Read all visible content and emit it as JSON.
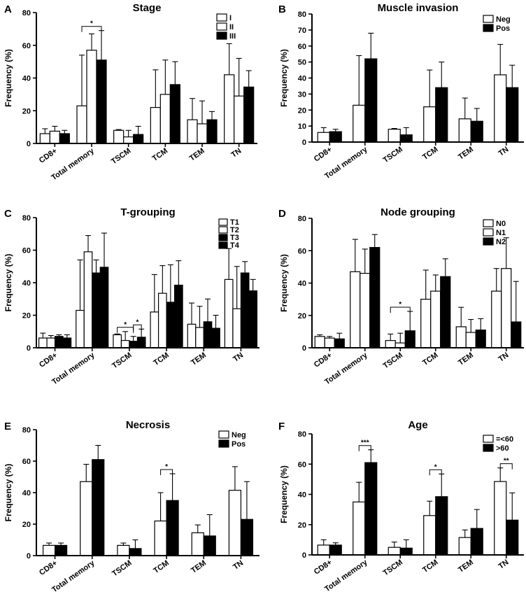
{
  "chart_data": [
    {
      "type": "bar",
      "panel_letter": "A",
      "title": "Stage",
      "ylabel": "Frequency (%)",
      "ylim": [
        0,
        80
      ],
      "yticks": [
        "0",
        "20",
        "40",
        "60",
        "80"
      ],
      "categories": [
        "CD8+",
        "Total memory",
        "TSCM",
        "TCM",
        "TEM",
        "TN"
      ],
      "series": [
        {
          "name": "I",
          "fill": "white",
          "values": [
            6,
            23,
            8,
            22,
            14.5,
            42
          ],
          "errors": [
            3,
            31,
            0.5,
            23,
            13,
            19
          ]
        },
        {
          "name": "II",
          "fill": "white",
          "values": [
            7.5,
            57,
            4,
            30,
            12,
            29
          ],
          "errors": [
            3,
            10,
            4,
            21,
            14,
            23
          ]
        },
        {
          "name": "III",
          "fill": "black",
          "values": [
            6,
            51,
            5.5,
            36,
            14.5,
            34.5
          ],
          "errors": [
            2,
            18,
            5,
            14,
            5,
            10
          ]
        }
      ],
      "legend_position": "top-right",
      "significance": [
        {
          "label": "*",
          "category": "Total memory",
          "from": 0,
          "to": 2
        }
      ]
    },
    {
      "type": "bar",
      "panel_letter": "B",
      "title": "Muscle invasion",
      "ylabel": "Frequency (%)",
      "ylim": [
        0,
        80
      ],
      "yticks": [
        "0",
        "10",
        "20",
        "30",
        "40",
        "50",
        "60",
        "70",
        "80"
      ],
      "categories": [
        "CD8+",
        "Total memory",
        "TSCM",
        "TCM",
        "TEM",
        "TN"
      ],
      "series": [
        {
          "name": "Neg",
          "fill": "white",
          "values": [
            6,
            23,
            8,
            22,
            14.5,
            42
          ],
          "errors": [
            3,
            31,
            0.5,
            23,
            13,
            19
          ]
        },
        {
          "name": "Pos",
          "fill": "black",
          "values": [
            6.5,
            52,
            4.5,
            34,
            13,
            34
          ],
          "errors": [
            1.5,
            16,
            4.5,
            16,
            8,
            14
          ]
        }
      ],
      "legend_position": "top-right",
      "significance": []
    },
    {
      "type": "bar",
      "panel_letter": "C",
      "title": "T-grouping",
      "ylabel": "Frequency (%)",
      "ylim": [
        0,
        80
      ],
      "yticks": [
        "0",
        "20",
        "40",
        "60",
        "80"
      ],
      "categories": [
        "CD8+",
        "Total memory",
        "TSCM",
        "TCM",
        "TEM",
        "TN"
      ],
      "series": [
        {
          "name": "T1",
          "fill": "white",
          "values": [
            6,
            23,
            8,
            22,
            14.5,
            42
          ],
          "errors": [
            3,
            31,
            0.5,
            23,
            13,
            19
          ]
        },
        {
          "name": "T2",
          "fill": "white",
          "values": [
            6,
            59,
            4.5,
            33.5,
            12.5,
            24
          ],
          "errors": [
            1.5,
            10,
            5.5,
            17,
            13,
            26
          ]
        },
        {
          "name": "T3",
          "fill": "black",
          "values": [
            7,
            46,
            4,
            28,
            16,
            46
          ],
          "errors": [
            1,
            8,
            3,
            23,
            14,
            7
          ]
        },
        {
          "name": "T4",
          "fill": "black",
          "values": [
            6,
            49.5,
            6.5,
            38.5,
            12,
            35
          ],
          "errors": [
            2,
            21,
            5,
            15,
            8,
            7
          ]
        }
      ],
      "legend_position": "top-right",
      "significance": [
        {
          "label": "*",
          "category": "TSCM",
          "from": 0,
          "to": 2
        },
        {
          "label": "*",
          "category": "TSCM",
          "from": 2,
          "to": 3
        }
      ]
    },
    {
      "type": "bar",
      "panel_letter": "D",
      "title": "Node grouping",
      "ylabel": "Frequency (%)",
      "ylim": [
        0,
        80
      ],
      "yticks": [
        "0",
        "20",
        "40",
        "60",
        "80"
      ],
      "categories": [
        "CD8+",
        "Total memory",
        "TSCM",
        "TCM",
        "TEM",
        "TN"
      ],
      "series": [
        {
          "name": "N0",
          "fill": "white",
          "values": [
            7,
            47,
            4.5,
            30,
            13,
            35
          ],
          "errors": [
            1,
            20,
            4,
            18,
            12,
            14
          ]
        },
        {
          "name": "N1",
          "fill": "white",
          "values": [
            6,
            46,
            3,
            35,
            9.5,
            49
          ],
          "errors": [
            1,
            15,
            6,
            10,
            8,
            19
          ]
        },
        {
          "name": "N2",
          "fill": "black",
          "values": [
            5.5,
            62,
            10.5,
            44,
            11,
            16
          ],
          "errors": [
            3.5,
            8,
            12,
            11,
            7,
            25
          ]
        }
      ],
      "legend_position": "top-right",
      "significance": [
        {
          "label": "*",
          "category": "TSCM",
          "from": 0,
          "to": 2
        }
      ]
    },
    {
      "type": "bar",
      "panel_letter": "E",
      "title": "Necrosis",
      "ylabel": "Frequency (%)",
      "ylim": [
        0,
        80
      ],
      "yticks": [
        "0",
        "20",
        "40",
        "60",
        "80"
      ],
      "categories": [
        "CD8+",
        "Total memory",
        "TSCM",
        "TCM",
        "TEM",
        "TN"
      ],
      "series": [
        {
          "name": "Neg",
          "fill": "white",
          "values": [
            6.5,
            47,
            6.5,
            22,
            14.5,
            41.5
          ],
          "errors": [
            1.5,
            11,
            1.5,
            18,
            5,
            15
          ]
        },
        {
          "name": "Pos",
          "fill": "black",
          "values": [
            6.5,
            61,
            4.5,
            35,
            12.5,
            23
          ],
          "errors": [
            1.5,
            9,
            5.5,
            17,
            13.5,
            24
          ]
        }
      ],
      "legend_position": "top-right",
      "significance": [
        {
          "label": "*",
          "category": "TCM",
          "from": 0,
          "to": 1
        }
      ]
    },
    {
      "type": "bar",
      "panel_letter": "F",
      "title": "Age",
      "ylabel": "Frequency (%)",
      "ylim": [
        0,
        80
      ],
      "yticks": [
        "0",
        "20",
        "40",
        "60",
        "80"
      ],
      "categories": [
        "CD8+",
        "Total memory",
        "TSCM",
        "TCM",
        "TEM",
        "TN"
      ],
      "series": [
        {
          "name": "=<60",
          "fill": "white",
          "values": [
            6.5,
            35,
            5,
            26,
            11.5,
            48.5
          ],
          "errors": [
            3.5,
            13,
            3.5,
            9.5,
            5,
            9
          ]
        },
        {
          "name": ">60",
          "fill": "black",
          "values": [
            6.5,
            61,
            4.5,
            38.5,
            17.5,
            23
          ],
          "errors": [
            1.5,
            8.5,
            5.5,
            15,
            12.5,
            18
          ]
        }
      ],
      "legend_position": "top-right",
      "significance": [
        {
          "label": "***",
          "category": "Total memory",
          "from": 0,
          "to": 1
        },
        {
          "label": "*",
          "category": "TCM",
          "from": 0,
          "to": 1
        },
        {
          "label": "**",
          "category": "TN",
          "from": 0,
          "to": 1
        }
      ]
    }
  ]
}
